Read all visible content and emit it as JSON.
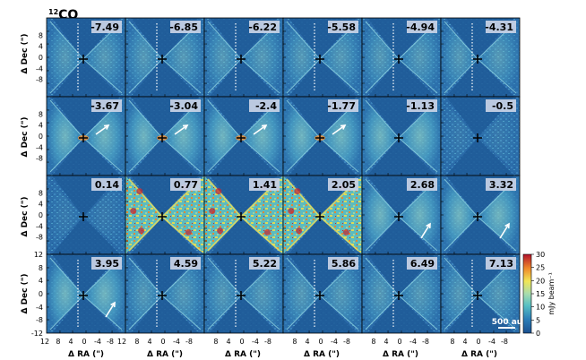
{
  "title": {
    "sup": "12",
    "main": "CO"
  },
  "channels": [
    "-7.49",
    "-6.85",
    "-6.22",
    "-5.58",
    "-4.94",
    "-4.31",
    "-3.67",
    "-3.04",
    "-2.4",
    "-1.77",
    "-1.13",
    "-0.5",
    "0.14",
    "0.77",
    "1.41",
    "2.05",
    "2.68",
    "3.32",
    "3.95",
    "4.59",
    "5.22",
    "5.86",
    "6.49",
    "7.13"
  ],
  "y_axis_label": "Δ Dec (\")",
  "x_axis_label": "Δ RA (\")",
  "y_ticks_upper": [
    "8",
    "4",
    "0",
    "-4",
    "-8"
  ],
  "y_ticks_bottom": [
    "12",
    "8",
    "4",
    "0",
    "-4",
    "-8",
    "-12"
  ],
  "x_ticks_first": [
    "12",
    "8",
    "4",
    "0",
    "-4",
    "-8"
  ],
  "x_ticks": [
    "12",
    "8",
    "4",
    "0",
    "-4",
    "-8"
  ],
  "scale_bar": "500 au",
  "colorbar": {
    "label": "mJy beam⁻¹",
    "ticks": [
      "0",
      "5",
      "10",
      "15",
      "20",
      "25",
      "30"
    ],
    "min": 0,
    "max": 30
  },
  "colors": {
    "background": "#1f5f9d",
    "mid": "#57c0c4",
    "high": "#e6e04f",
    "peak": "#c9202a"
  }
}
